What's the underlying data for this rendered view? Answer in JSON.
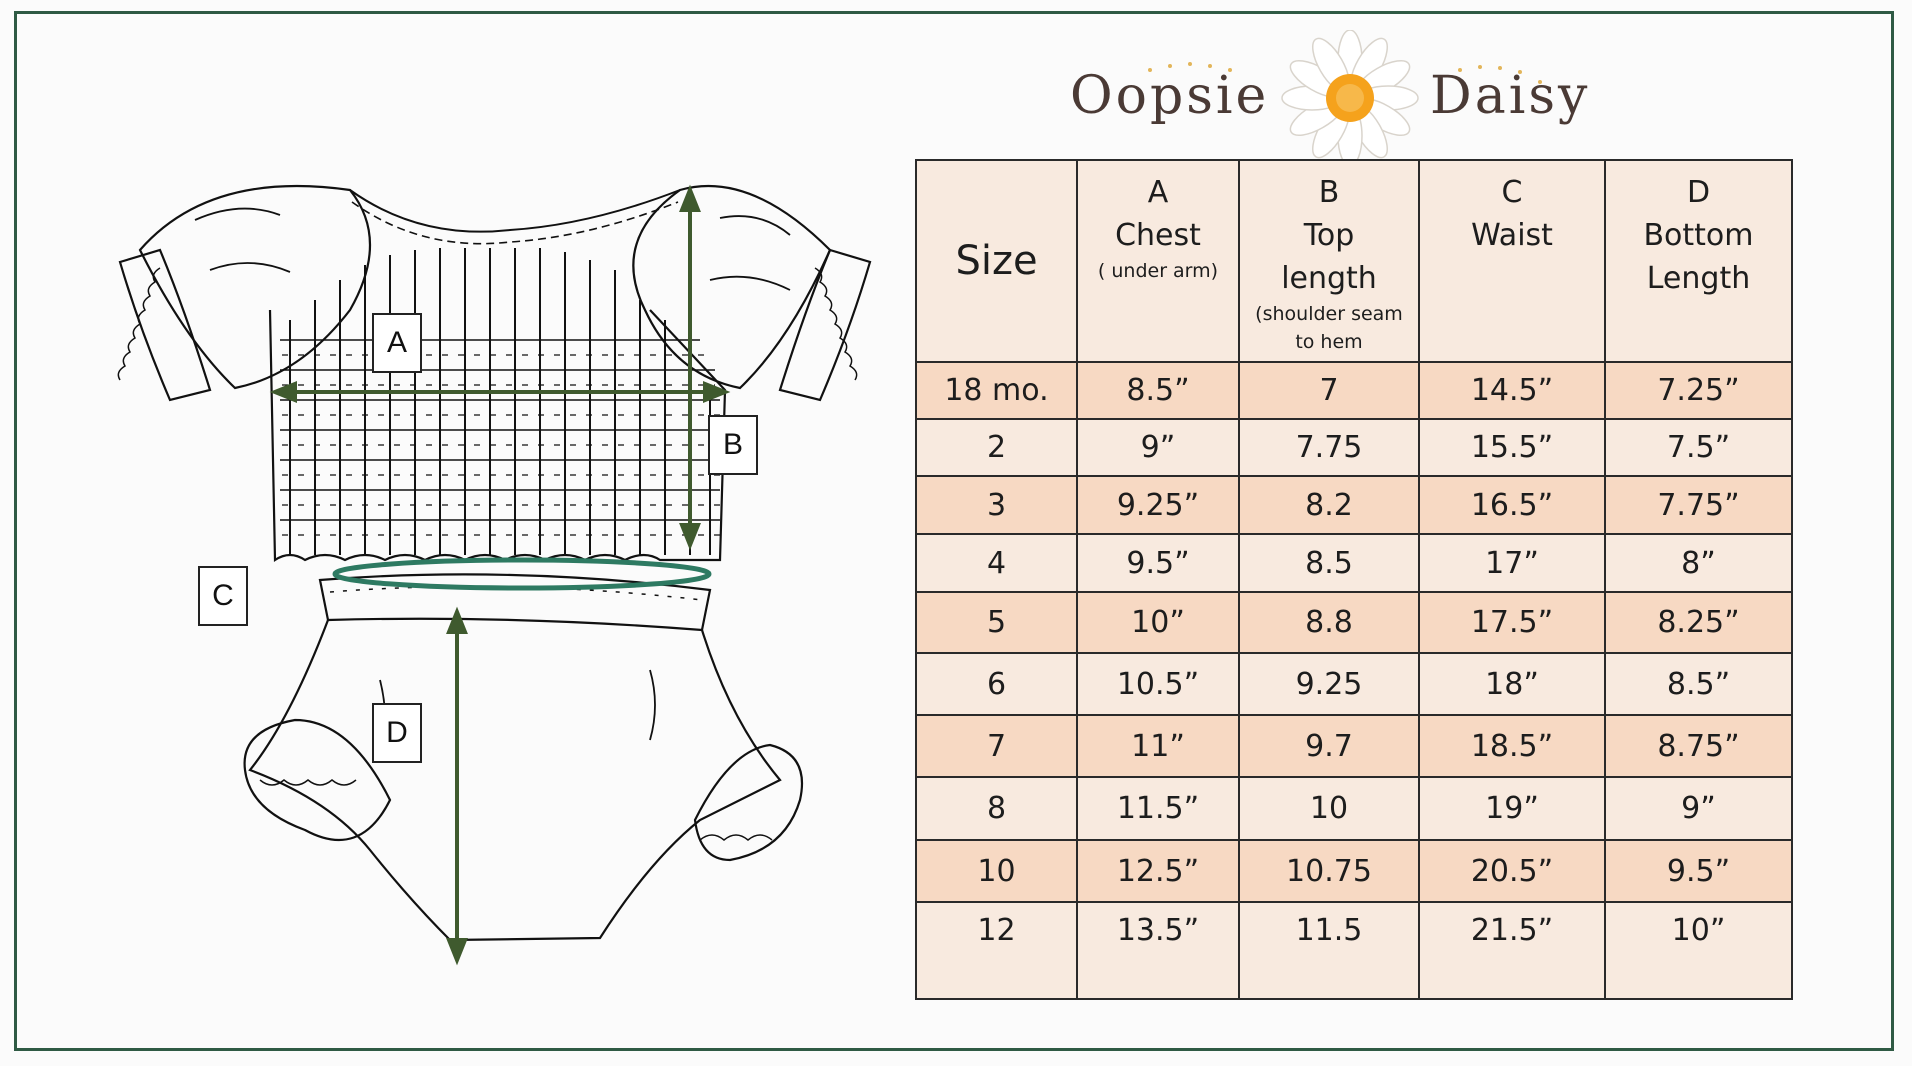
{
  "logo": {
    "word_left": "Oopsie",
    "word_right": "Daisy"
  },
  "diagram_labels": {
    "a": "A",
    "b": "B",
    "c": "C",
    "d": "D"
  },
  "table": {
    "headers": [
      {
        "lines": [
          "Size"
        ],
        "sub": []
      },
      {
        "lines": [
          "A",
          "Chest"
        ],
        "sub": [
          "( under arm)"
        ]
      },
      {
        "lines": [
          "B",
          "Top",
          "length"
        ],
        "sub": [
          "(shoulder seam",
          "to hem"
        ]
      },
      {
        "lines": [
          "C",
          "Waist"
        ],
        "sub": []
      },
      {
        "lines": [
          "D",
          "Bottom",
          "Length"
        ],
        "sub": []
      }
    ],
    "rows": [
      [
        "18 mo.",
        "8.5”",
        "7",
        "14.5”",
        "7.25”"
      ],
      [
        "2",
        "9”",
        "7.75",
        "15.5”",
        "7.5”"
      ],
      [
        "3",
        "9.25”",
        "8.2",
        "16.5”",
        "7.75”"
      ],
      [
        "4",
        "9.5”",
        "8.5",
        "17”",
        "8”"
      ],
      [
        "5",
        "10”",
        "8.8",
        "17.5”",
        "8.25”"
      ],
      [
        "6",
        "10.5”",
        "9.25",
        "18”",
        "8.5”"
      ],
      [
        "7",
        "11”",
        "9.7",
        "18.5”",
        "8.75”"
      ],
      [
        "8",
        "11.5”",
        "10",
        "19”",
        "9”"
      ],
      [
        "10",
        "12.5”",
        "10.75",
        "20.5”",
        "9.5”"
      ],
      [
        "12",
        "13.5”",
        "11.5",
        "21.5”",
        "10”"
      ]
    ]
  },
  "colors": {
    "frame": "#2f5a44",
    "arrow": "#3f5a2e",
    "waist_ring": "#2e7a62",
    "row_shade": "#f7d9c3",
    "row_light": "#f8eadf"
  }
}
